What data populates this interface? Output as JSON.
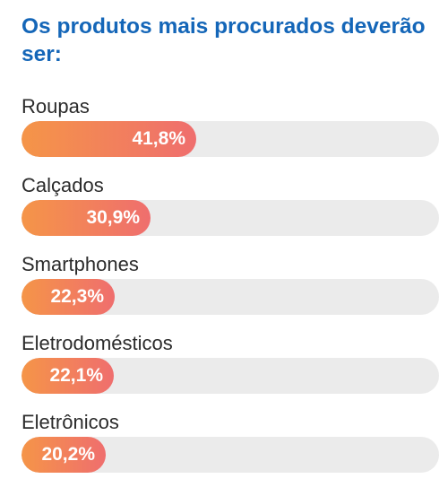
{
  "title": "Os produtos mais procurados deverão ser:",
  "colors": {
    "title": "#1466b8",
    "label": "#2b2b2b",
    "track": "#ebebeb",
    "bar_start": "#f59548",
    "bar_end": "#ef6e6e",
    "value_text": "#ffffff"
  },
  "chart_data": {
    "type": "bar",
    "orientation": "horizontal",
    "title": "Os produtos mais procurados deverão ser:",
    "categories": [
      "Roupas",
      "Calçados",
      "Smartphones",
      "Eletrodomésticos",
      "Eletrônicos"
    ],
    "values": [
      41.8,
      30.9,
      22.3,
      22.1,
      20.2
    ],
    "value_labels": [
      "41,8%",
      "30,9%",
      "22,3%",
      "22,1%",
      "20,2%"
    ],
    "unit": "%",
    "xlim": [
      0,
      100
    ],
    "grid": false,
    "legend": "none"
  }
}
